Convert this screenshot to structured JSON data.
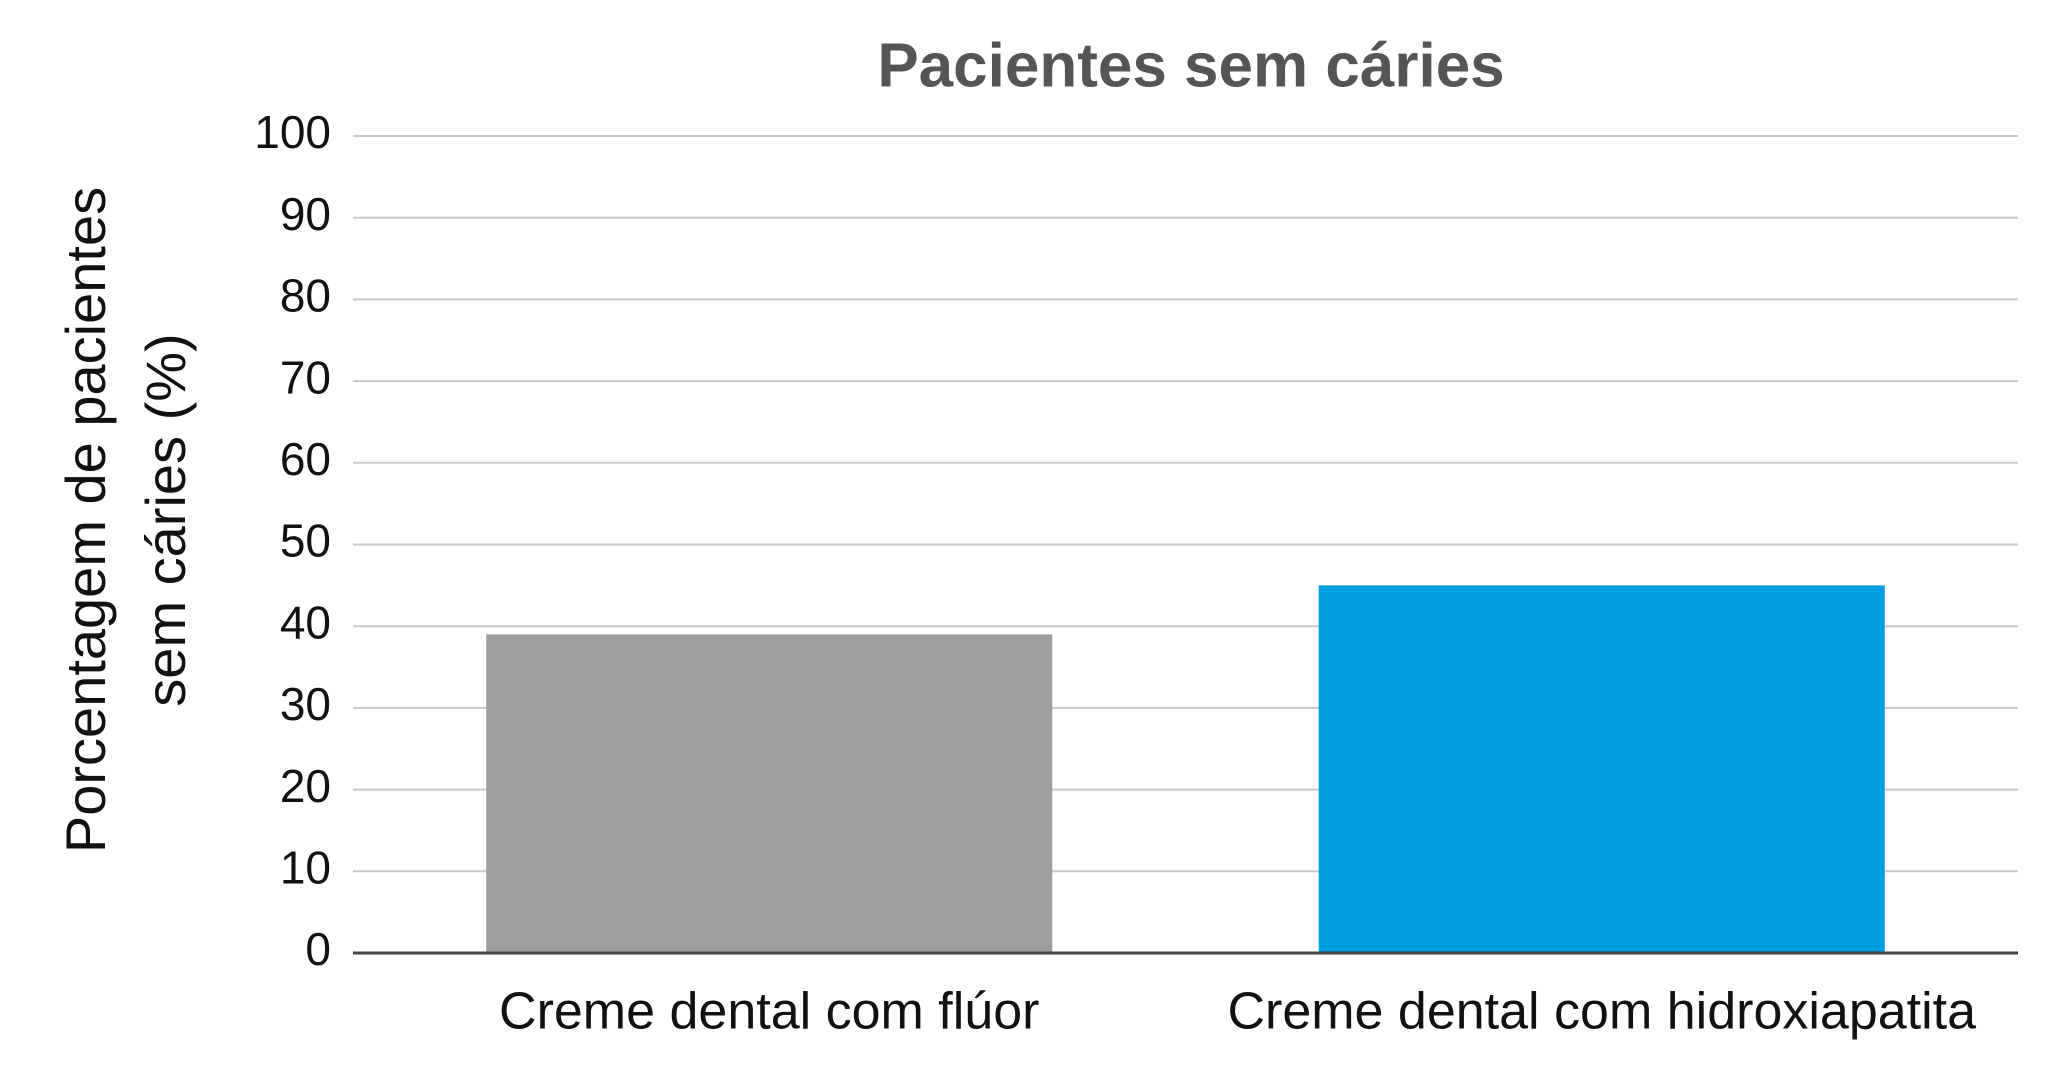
{
  "chart_data": {
    "type": "bar",
    "title": "Pacientes sem cáries",
    "y_label": [
      "Porcentagem de pacientes",
      "sem cáries (%)"
    ],
    "categories": [
      "Creme dental com flúor",
      "Creme dental com hidroxiapatita"
    ],
    "values": [
      39,
      45
    ],
    "colors": [
      "#9e9e9e",
      "#009ee0"
    ],
    "ylim": [
      0,
      100
    ],
    "yticks": [
      0,
      10,
      20,
      30,
      40,
      50,
      60,
      70,
      80,
      90,
      100
    ],
    "grid": true
  }
}
